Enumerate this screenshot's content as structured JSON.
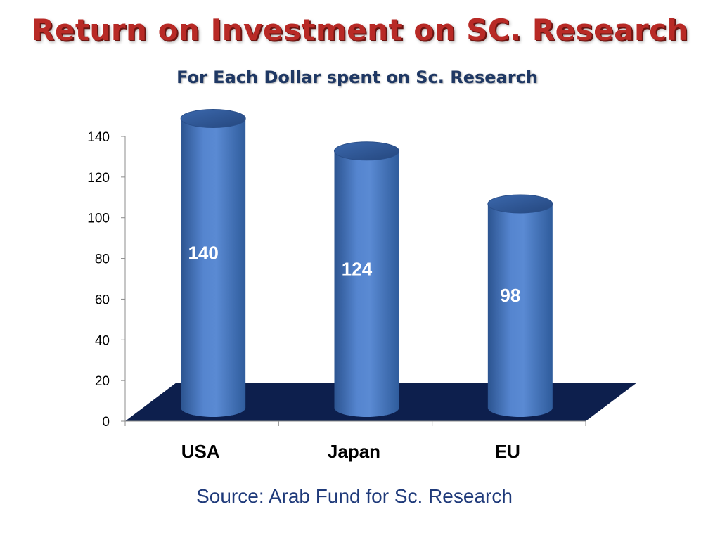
{
  "slide": {
    "title": "Return on Investment on SC. Research",
    "subtitle": "For Each Dollar spent on Sc. Research",
    "source": "Source: Arab Fund for Sc. Research"
  },
  "colors": {
    "title": "#b82a26",
    "subtitle": "#1f3864",
    "bar": "#4a78c0",
    "floor": "#0d1f4d",
    "source": "#1f3a7a"
  },
  "chart_data": {
    "type": "bar",
    "style": "3d-cylinder",
    "categories": [
      "USA",
      "Japan",
      "EU"
    ],
    "values": [
      140,
      124,
      98
    ],
    "data_labels": [
      "140",
      "124",
      "98"
    ],
    "title": "",
    "xlabel": "",
    "ylabel": "",
    "ylim": [
      0,
      140
    ],
    "yticks": [
      0,
      20,
      40,
      60,
      80,
      100,
      120,
      140
    ],
    "grid": false,
    "legend": "none"
  }
}
